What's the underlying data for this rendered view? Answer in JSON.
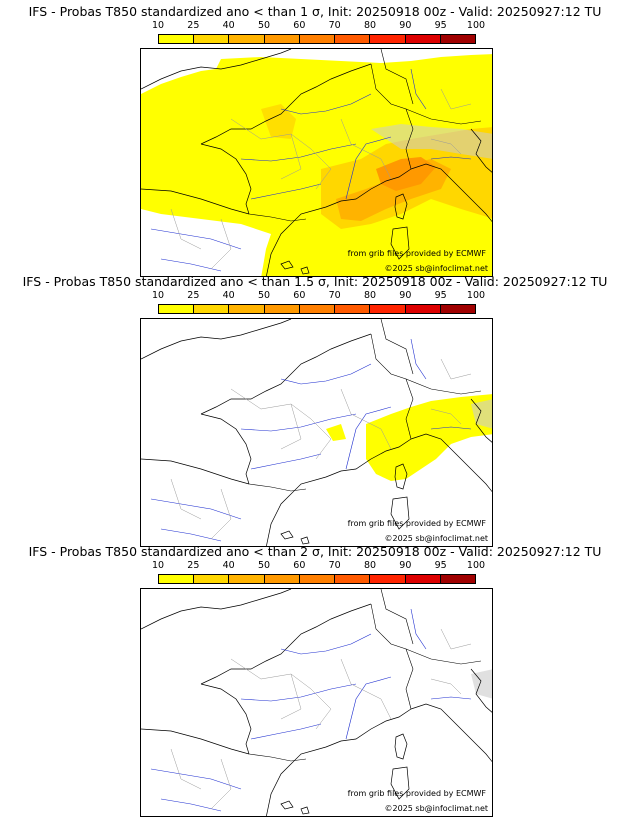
{
  "colorbar": {
    "ticks": [
      "10",
      "25",
      "40",
      "50",
      "60",
      "70",
      "80",
      "90",
      "95",
      "100"
    ],
    "colors": [
      "#ffff00",
      "#ffd700",
      "#ffb300",
      "#ff9900",
      "#ff7f00",
      "#ff5a00",
      "#ff2400",
      "#dd0000",
      "#a00000",
      "#5a0000"
    ]
  },
  "panels": [
    {
      "title": "IFS - Probas T850  standardized ano < than 1 σ, Init: 20250918 00z - Valid: 20250927:12 TU",
      "credit": "from grib files provided by ECMWF",
      "copyright": "©2025 sb@infoclimat.net"
    },
    {
      "title": "IFS - Probas T850  standardized ano < than 1.5 σ, Init: 20250918 00z - Valid: 20250927:12 TU",
      "credit": "from grib files provided by ECMWF",
      "copyright": "©2025 sb@infoclimat.net"
    },
    {
      "title": "IFS - Probas T850  standardized ano < than 2 σ, Init: 20250918 00z - Valid: 20250927:12 TU",
      "credit": "from grib files provided by ECMWF",
      "copyright": "©2025 sb@infoclimat.net"
    }
  ]
}
